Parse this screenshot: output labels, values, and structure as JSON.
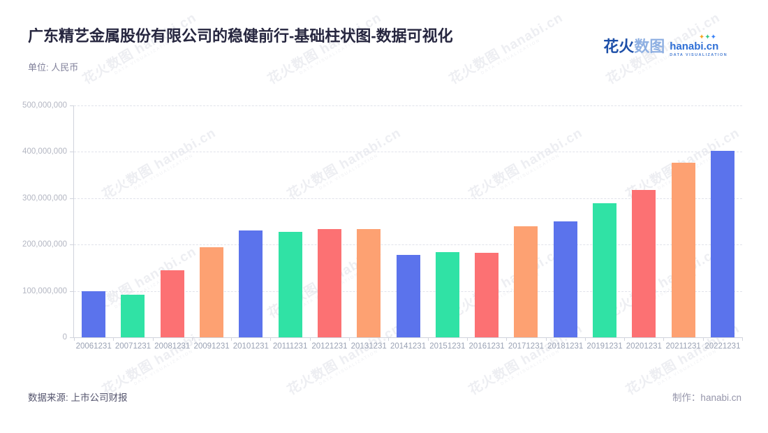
{
  "title": "广东精艺金属股份有限公司的稳健前行-基础柱状图-数据可视化",
  "subtitle": "单位: 人民币",
  "logo": {
    "cn_part1": "花火",
    "cn_part2": "数图",
    "domain": "hanabi.cn",
    "tagline": "DATA VISUALIZATION"
  },
  "watermark": {
    "text": "花火数图 hanabi.cn",
    "tagline": "DATA VISUALIZATION"
  },
  "footer": {
    "source": "数据来源: 上市公司财报",
    "credit": "制作：hanabi.cn"
  },
  "chart_data": {
    "type": "bar",
    "title": "广东精艺金属股份有限公司的稳健前行-基础柱状图-数据可视化",
    "xlabel": "",
    "ylabel": "人民币",
    "ylim": [
      0,
      500000000
    ],
    "ytick_interval": 100000000,
    "ytick_labels_top_to_bottom": [
      "500,000,000",
      "400,000,000",
      "300,000,000",
      "200,000,000",
      "100,000,000",
      "0"
    ],
    "grid": "horizontal-dashed",
    "legend": "none",
    "palette": [
      "#5B73EC",
      "#30E2A5",
      "#FC7173",
      "#FDA172"
    ],
    "categories": [
      "20061231",
      "20071231",
      "20081231",
      "20091231",
      "20101231",
      "20111231",
      "20121231",
      "20131231",
      "20141231",
      "20151231",
      "20161231",
      "20171231",
      "20181231",
      "20191231",
      "20201231",
      "20211231",
      "20221231"
    ],
    "values": [
      99000000,
      92000000,
      145000000,
      194000000,
      230000000,
      227000000,
      233000000,
      234000000,
      177000000,
      184000000,
      183000000,
      240000000,
      250000000,
      289000000,
      318000000,
      376000000,
      402000000
    ]
  }
}
